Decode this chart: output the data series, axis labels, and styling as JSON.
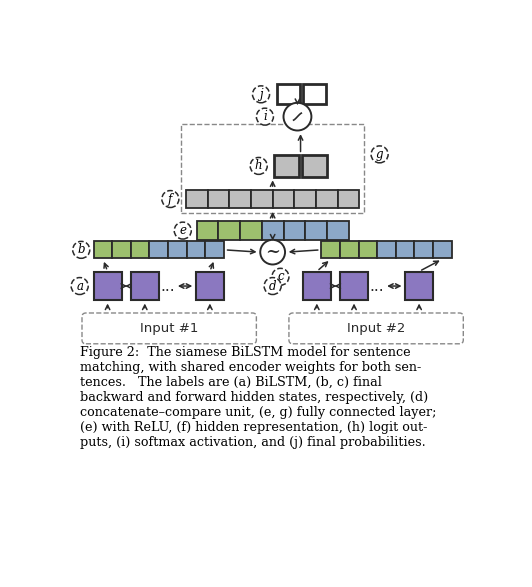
{
  "bg_color": "#ffffff",
  "purple_color": "#8B78C0",
  "green_color": "#9DC06E",
  "blue_color": "#8CA8C8",
  "gray_color": "#BEBEBE",
  "dark": "#2a2a2a",
  "caption_lines": [
    "Figure 2:  The siamese BiLSTM model for sentence",
    "matching, with shared encoder weights for both sen-",
    "tences.   The labels are (a) BiLSTM, (b, c) final",
    "backward and forward hidden states, respectively, (d)",
    "concatenate–compare unit, (e, g) fully connected layer;",
    "(e) with ReLU, (f) hidden representation, (h) logit out-",
    "puts, (i) softmax activation, and (j) final probabilities."
  ],
  "caption_bold_parts": [
    [
      "(a)",
      "(b, c)",
      "(d)",
      "(e, g)"
    ],
    [
      "(e)",
      "(f)",
      "(h)",
      "(i)",
      "(j)"
    ]
  ]
}
